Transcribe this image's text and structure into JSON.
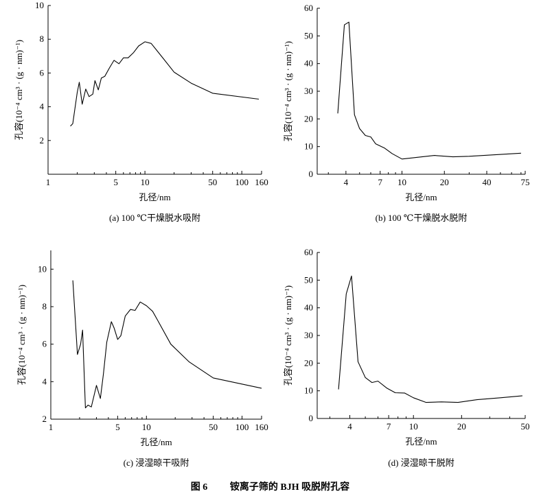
{
  "figure_caption": {
    "number": "图 6",
    "text": "铵离子筛的 BJH 吸脱附孔容"
  },
  "chart_data": [
    {
      "type": "line",
      "caption": "(a) 100 ℃干燥脱水吸附",
      "xlabel": "孔径/nm",
      "ylabel": "孔容(10⁻⁴ cm³ · (g · nm)⁻¹)",
      "xscale": "log",
      "xlim": [
        1,
        160
      ],
      "ylim": [
        0,
        10
      ],
      "xticks": [
        1,
        5,
        10,
        50,
        100,
        160
      ],
      "xtick_labels": [
        "1",
        "5",
        "10",
        "50",
        "100",
        "160"
      ],
      "yticks": [
        2,
        4,
        6,
        8,
        10
      ],
      "ytick_labels": [
        "2",
        "4",
        "6",
        "8",
        "10"
      ],
      "series": [
        {
          "name": "adsorption",
          "x": [
            1.7,
            1.8,
            2.0,
            2.1,
            2.25,
            2.45,
            2.65,
            2.9,
            3.05,
            3.3,
            3.55,
            3.85,
            4.3,
            4.8,
            5.4,
            6.0,
            6.7,
            7.6,
            8.6,
            10.0,
            11.6,
            13.0,
            15.5,
            20.0,
            30.0,
            50.0,
            150.0
          ],
          "y": [
            2.85,
            3.0,
            4.85,
            5.45,
            4.15,
            5.05,
            4.6,
            4.75,
            5.55,
            5.0,
            5.7,
            5.8,
            6.3,
            6.75,
            6.55,
            6.9,
            6.9,
            7.2,
            7.6,
            7.85,
            7.75,
            7.4,
            6.85,
            6.05,
            5.4,
            4.8,
            4.45
          ]
        }
      ]
    },
    {
      "type": "line",
      "caption": "(b) 100 ℃干燥脱水脱附",
      "xlabel": "孔径/nm",
      "ylabel": "孔容(10⁻⁴ cm³ · (g · nm)⁻¹)",
      "xscale": "log",
      "xlim": [
        2.5,
        75
      ],
      "ylim": [
        0,
        60
      ],
      "xticks": [
        4,
        7,
        10,
        20,
        40,
        75
      ],
      "xtick_labels": [
        "4",
        "7",
        "10",
        "20",
        "40",
        "75"
      ],
      "yticks": [
        0,
        10,
        20,
        30,
        40,
        50,
        60
      ],
      "ytick_labels": [
        "0",
        "10",
        "20",
        "30",
        "40",
        "50",
        "60"
      ],
      "series": [
        {
          "name": "desorption",
          "x": [
            3.5,
            3.9,
            4.2,
            4.6,
            5.0,
            5.5,
            6.0,
            6.5,
            7.5,
            8.5,
            10.0,
            17.0,
            23.0,
            30.0,
            70.0
          ],
          "y": [
            22.0,
            54.0,
            55.0,
            21.5,
            16.5,
            14.0,
            13.5,
            11.0,
            9.5,
            7.5,
            5.5,
            6.8,
            6.3,
            6.5,
            7.6
          ]
        }
      ]
    },
    {
      "type": "line",
      "caption": "(c) 浸湿晾干吸附",
      "xlabel": "孔径/nm",
      "ylabel": "孔容(10⁻⁴ cm³ · (g · nm)⁻¹)",
      "xscale": "log",
      "xlim": [
        1,
        160
      ],
      "ylim": [
        2,
        11
      ],
      "xticks": [
        1,
        5,
        10,
        50,
        100,
        160
      ],
      "xtick_labels": [
        "1",
        "5",
        "10",
        "50",
        "100",
        "160"
      ],
      "yticks": [
        2,
        4,
        6,
        8,
        10
      ],
      "ytick_labels": [
        "2",
        "4",
        "6",
        "8",
        "10"
      ],
      "series": [
        {
          "name": "adsorption",
          "x": [
            1.7,
            1.9,
            2.05,
            2.15,
            2.3,
            2.45,
            2.65,
            3.0,
            3.3,
            3.55,
            3.85,
            4.3,
            4.6,
            5.0,
            5.4,
            6.0,
            6.8,
            7.6,
            8.6,
            10.0,
            11.6,
            13.0,
            18.0,
            28.0,
            50.0,
            160.0
          ],
          "y": [
            9.4,
            5.45,
            6.0,
            6.75,
            2.6,
            2.75,
            2.65,
            3.8,
            3.1,
            4.4,
            6.1,
            7.2,
            6.85,
            6.25,
            6.45,
            7.5,
            7.85,
            7.8,
            8.25,
            8.05,
            7.75,
            7.3,
            6.0,
            5.05,
            4.2,
            3.65
          ]
        }
      ]
    },
    {
      "type": "line",
      "caption": "(d) 浸湿晾干脱附",
      "xlabel": "孔径/nm",
      "ylabel": "孔容(10⁻⁴ cm³ · (g · nm)⁻¹)",
      "xscale": "log",
      "xlim": [
        2.5,
        50
      ],
      "ylim": [
        0,
        60
      ],
      "xticks": [
        4,
        7,
        10,
        20,
        50
      ],
      "xtick_labels": [
        "4",
        "7",
        "10",
        "20",
        "50"
      ],
      "yticks": [
        0,
        10,
        20,
        30,
        40,
        50,
        60
      ],
      "ytick_labels": [
        "0",
        "10",
        "20",
        "30",
        "40",
        "50",
        "60"
      ],
      "series": [
        {
          "name": "desorption",
          "x": [
            3.4,
            3.8,
            4.1,
            4.5,
            5.0,
            5.5,
            6.0,
            6.8,
            7.7,
            8.8,
            10.0,
            12.0,
            15.0,
            19.0,
            25.0,
            35.0,
            48.0
          ],
          "y": [
            10.5,
            45.0,
            51.5,
            20.5,
            14.8,
            13.0,
            13.5,
            11.0,
            9.3,
            9.2,
            7.5,
            5.8,
            6.0,
            5.8,
            6.8,
            7.5,
            8.2
          ]
        }
      ]
    }
  ]
}
